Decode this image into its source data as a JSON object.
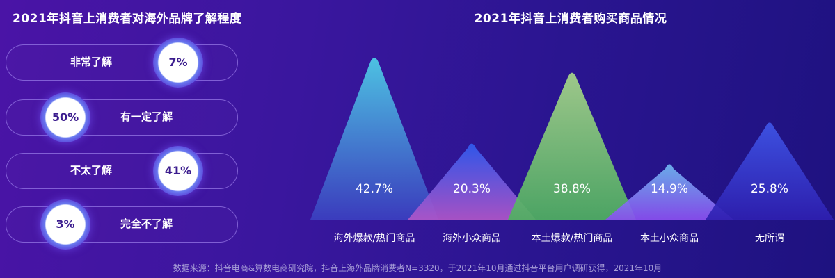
{
  "left_title": "2021年抖音上消费者对海外品牌了解程度",
  "right_title": "2021年抖音上消费者购买商品情况",
  "awareness": [
    {
      "label": "非常了解",
      "value": "7%"
    },
    {
      "label": "有一定了解",
      "value": "50%"
    },
    {
      "label": "不太了解",
      "value": "41%"
    },
    {
      "label": "完全不了解",
      "value": "3%"
    }
  ],
  "chart_data": {
    "type": "bar",
    "title": "2021年抖音上消费者购买商品情况",
    "categories": [
      "海外爆款/热门商品",
      "海外小众商品",
      "本土爆款/热门商品",
      "本土小众商品",
      "无所谓"
    ],
    "values": [
      42.7,
      20.3,
      38.8,
      14.9,
      25.8
    ],
    "value_labels": [
      "42.7%",
      "20.3%",
      "38.8%",
      "14.9%",
      "25.8%"
    ],
    "colors_top": [
      "#4fd0e8",
      "#2f5cf0",
      "#a8d68a",
      "#6fb8f0",
      "#3f56e8"
    ],
    "colors_bottom": [
      "#3b3fc0",
      "#b056c8",
      "#4fb060",
      "#8a4ff0",
      "#2e1fb0"
    ],
    "ylim": [
      0,
      45
    ],
    "xlabel": "",
    "ylabel": ""
  },
  "footer": "数据来源：抖音电商&算数电商研究院，抖音上海外品牌消费者N=3320，于2021年10月通过抖音平台用户调研获得，2021年10月"
}
